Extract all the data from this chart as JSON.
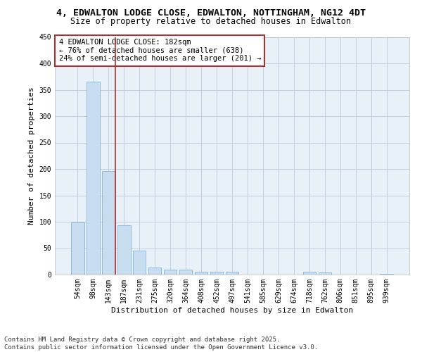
{
  "title_line1": "4, EDWALTON LODGE CLOSE, EDWALTON, NOTTINGHAM, NG12 4DT",
  "title_line2": "Size of property relative to detached houses in Edwalton",
  "xlabel": "Distribution of detached houses by size in Edwalton",
  "ylabel": "Number of detached properties",
  "categories": [
    "54sqm",
    "98sqm",
    "143sqm",
    "187sqm",
    "231sqm",
    "275sqm",
    "320sqm",
    "364sqm",
    "408sqm",
    "452sqm",
    "497sqm",
    "541sqm",
    "585sqm",
    "629sqm",
    "674sqm",
    "718sqm",
    "762sqm",
    "806sqm",
    "851sqm",
    "895sqm",
    "939sqm"
  ],
  "values": [
    99,
    365,
    196,
    93,
    46,
    13,
    10,
    10,
    6,
    5,
    5,
    0,
    0,
    0,
    0,
    5,
    4,
    0,
    0,
    0,
    2
  ],
  "bar_color": "#c9ddf0",
  "bar_edge_color": "#8ab4d8",
  "vline_color": "#b03030",
  "annotation_text": "4 EDWALTON LODGE CLOSE: 182sqm\n← 76% of detached houses are smaller (638)\n24% of semi-detached houses are larger (201) →",
  "annotation_box_color": "white",
  "annotation_box_edge_color": "#b03030",
  "ylim": [
    0,
    450
  ],
  "yticks": [
    0,
    50,
    100,
    150,
    200,
    250,
    300,
    350,
    400,
    450
  ],
  "grid_color": "#c0d0e0",
  "bg_color": "#e8f0f8",
  "footer_line1": "Contains HM Land Registry data © Crown copyright and database right 2025.",
  "footer_line2": "Contains public sector information licensed under the Open Government Licence v3.0.",
  "title_fontsize": 9.5,
  "subtitle_fontsize": 8.5,
  "axis_label_fontsize": 8,
  "tick_fontsize": 7,
  "annotation_fontsize": 7.5,
  "footer_fontsize": 6.5
}
